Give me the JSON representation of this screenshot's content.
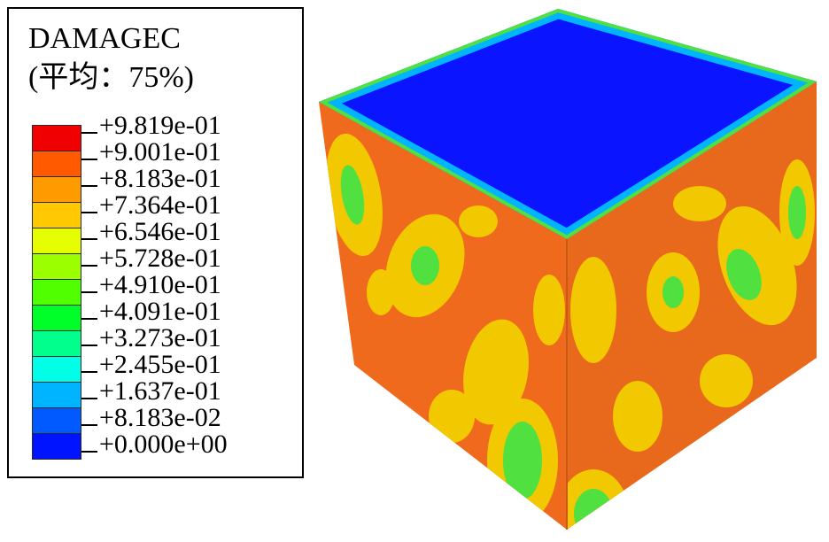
{
  "legend": {
    "title": "DAMAGEC",
    "subtitle": "(平均：75%)",
    "levels": [
      {
        "label": "+9.819e-01",
        "color": "#f00000"
      },
      {
        "label": "+9.001e-01",
        "color": "#ff5a00"
      },
      {
        "label": "+8.183e-01",
        "color": "#ff9b00"
      },
      {
        "label": "+7.364e-01",
        "color": "#ffc800"
      },
      {
        "label": "+6.546e-01",
        "color": "#e6ff00"
      },
      {
        "label": "+5.728e-01",
        "color": "#9bff00"
      },
      {
        "label": "+4.910e-01",
        "color": "#50ff00"
      },
      {
        "label": "+4.091e-01",
        "color": "#00ff28"
      },
      {
        "label": "+3.273e-01",
        "color": "#00ff8c"
      },
      {
        "label": "+2.455e-01",
        "color": "#00ffe6"
      },
      {
        "label": "+1.637e-01",
        "color": "#00b4ff"
      },
      {
        "label": "+8.183e-02",
        "color": "#005aff"
      },
      {
        "label": "+0.000e+00",
        "color": "#0014ff"
      }
    ]
  },
  "colors": {
    "top_face": "#0a14ff",
    "left_face": "#f06a1e",
    "right_face": "#e8691c",
    "accent_green": "#50e040",
    "accent_yellow": "#f2c800"
  }
}
